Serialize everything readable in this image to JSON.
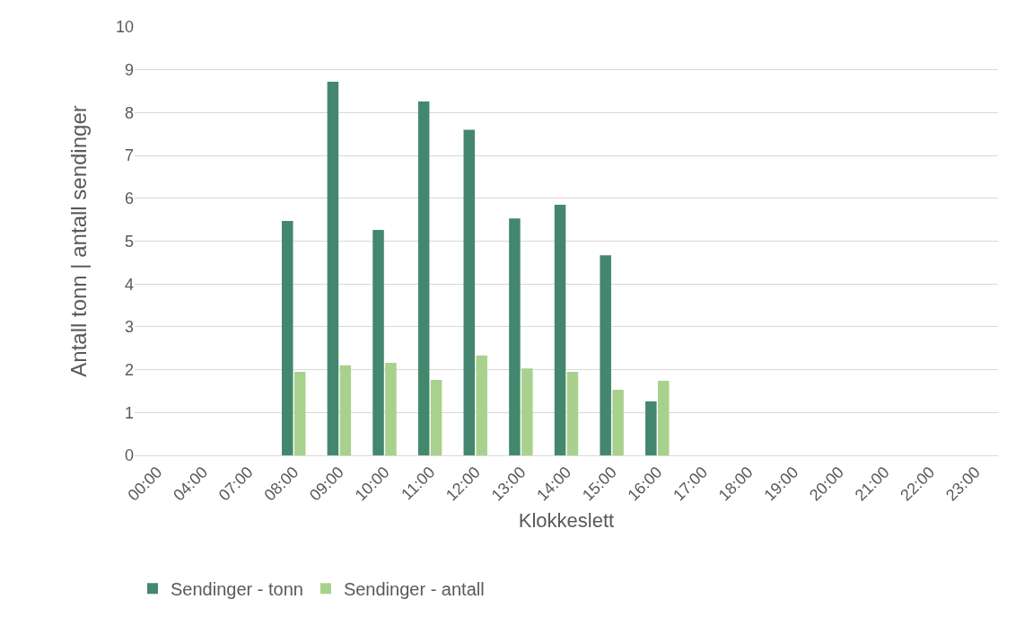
{
  "chart_data": {
    "type": "bar",
    "xlabel": "Klokkeslett",
    "ylabel": "Antall tonn | antall sendinger",
    "categories": [
      "00:00",
      "04:00",
      "07:00",
      "08:00",
      "09:00",
      "10:00",
      "11:00",
      "12:00",
      "13:00",
      "14:00",
      "15:00",
      "16:00",
      "17:00",
      "18:00",
      "19:00",
      "20:00",
      "21:00",
      "22:00",
      "23:00"
    ],
    "series": [
      {
        "name": "Sendinger - tonn",
        "color": "#44876f",
        "values": [
          0,
          0,
          0,
          5.47,
          8.72,
          5.26,
          8.26,
          7.6,
          5.53,
          5.85,
          4.67,
          1.26,
          0,
          0,
          0,
          0,
          0,
          0,
          0
        ]
      },
      {
        "name": "Sendinger - antall",
        "color": "#a9d18e",
        "values": [
          0,
          0,
          0,
          1.95,
          2.1,
          2.16,
          1.76,
          2.33,
          2.03,
          1.95,
          1.53,
          1.74,
          0,
          0,
          0,
          0,
          0,
          0,
          0
        ]
      }
    ],
    "ylim": [
      0,
      10
    ],
    "yticks": [
      0,
      1,
      2,
      3,
      4,
      5,
      6,
      7,
      8,
      9,
      10
    ],
    "grid": "y",
    "legend": "bottom left"
  }
}
